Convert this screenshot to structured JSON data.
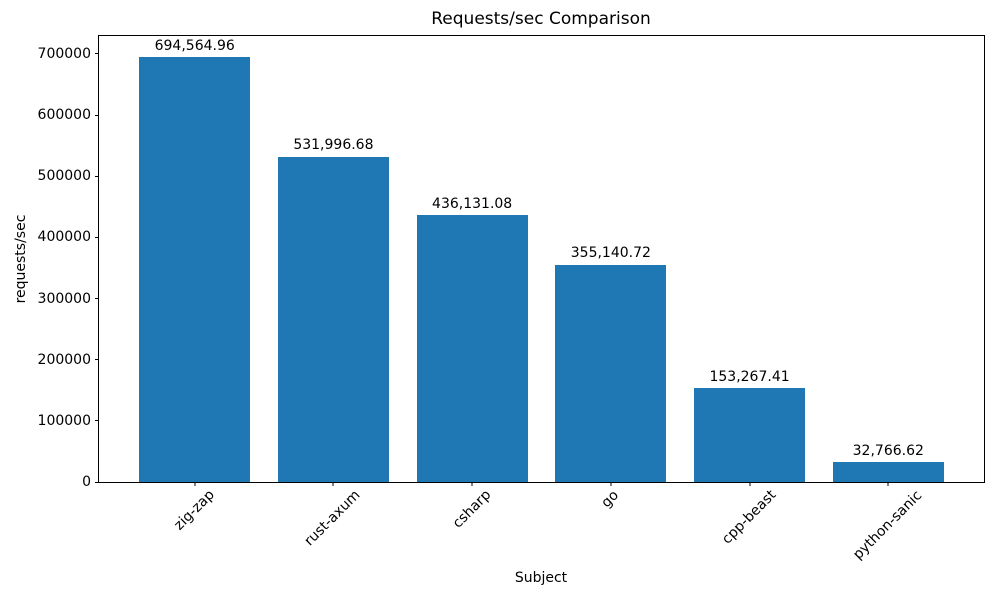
{
  "figure": {
    "background": "#ffffff",
    "text_color": "#000000"
  },
  "chart_data": {
    "type": "bar",
    "title": "Requests/sec Comparison",
    "xlabel": "Subject",
    "ylabel": "requests/sec",
    "categories": [
      "zig-zap",
      "rust-axum",
      "csharp",
      "go",
      "cpp-beast",
      "python-sanic"
    ],
    "values": [
      694564.96,
      531996.68,
      436131.08,
      355140.72,
      153267.41,
      32766.62
    ],
    "value_labels": [
      "694,564.96",
      "531,996.68",
      "436,131.08",
      "355,140.72",
      "153,267.41",
      "32,766.62"
    ],
    "yticks": [
      0,
      100000,
      200000,
      300000,
      400000,
      500000,
      600000,
      700000
    ],
    "ytick_labels": [
      "0",
      "100000",
      "200000",
      "300000",
      "400000",
      "500000",
      "600000",
      "700000"
    ],
    "ylim": [
      0,
      729293
    ],
    "xlim": [
      -0.69,
      5.69
    ],
    "bar_color": "#1f77b4",
    "bar_width": 0.8,
    "grid": false,
    "legend": null,
    "xtick_rotation": 45
  }
}
